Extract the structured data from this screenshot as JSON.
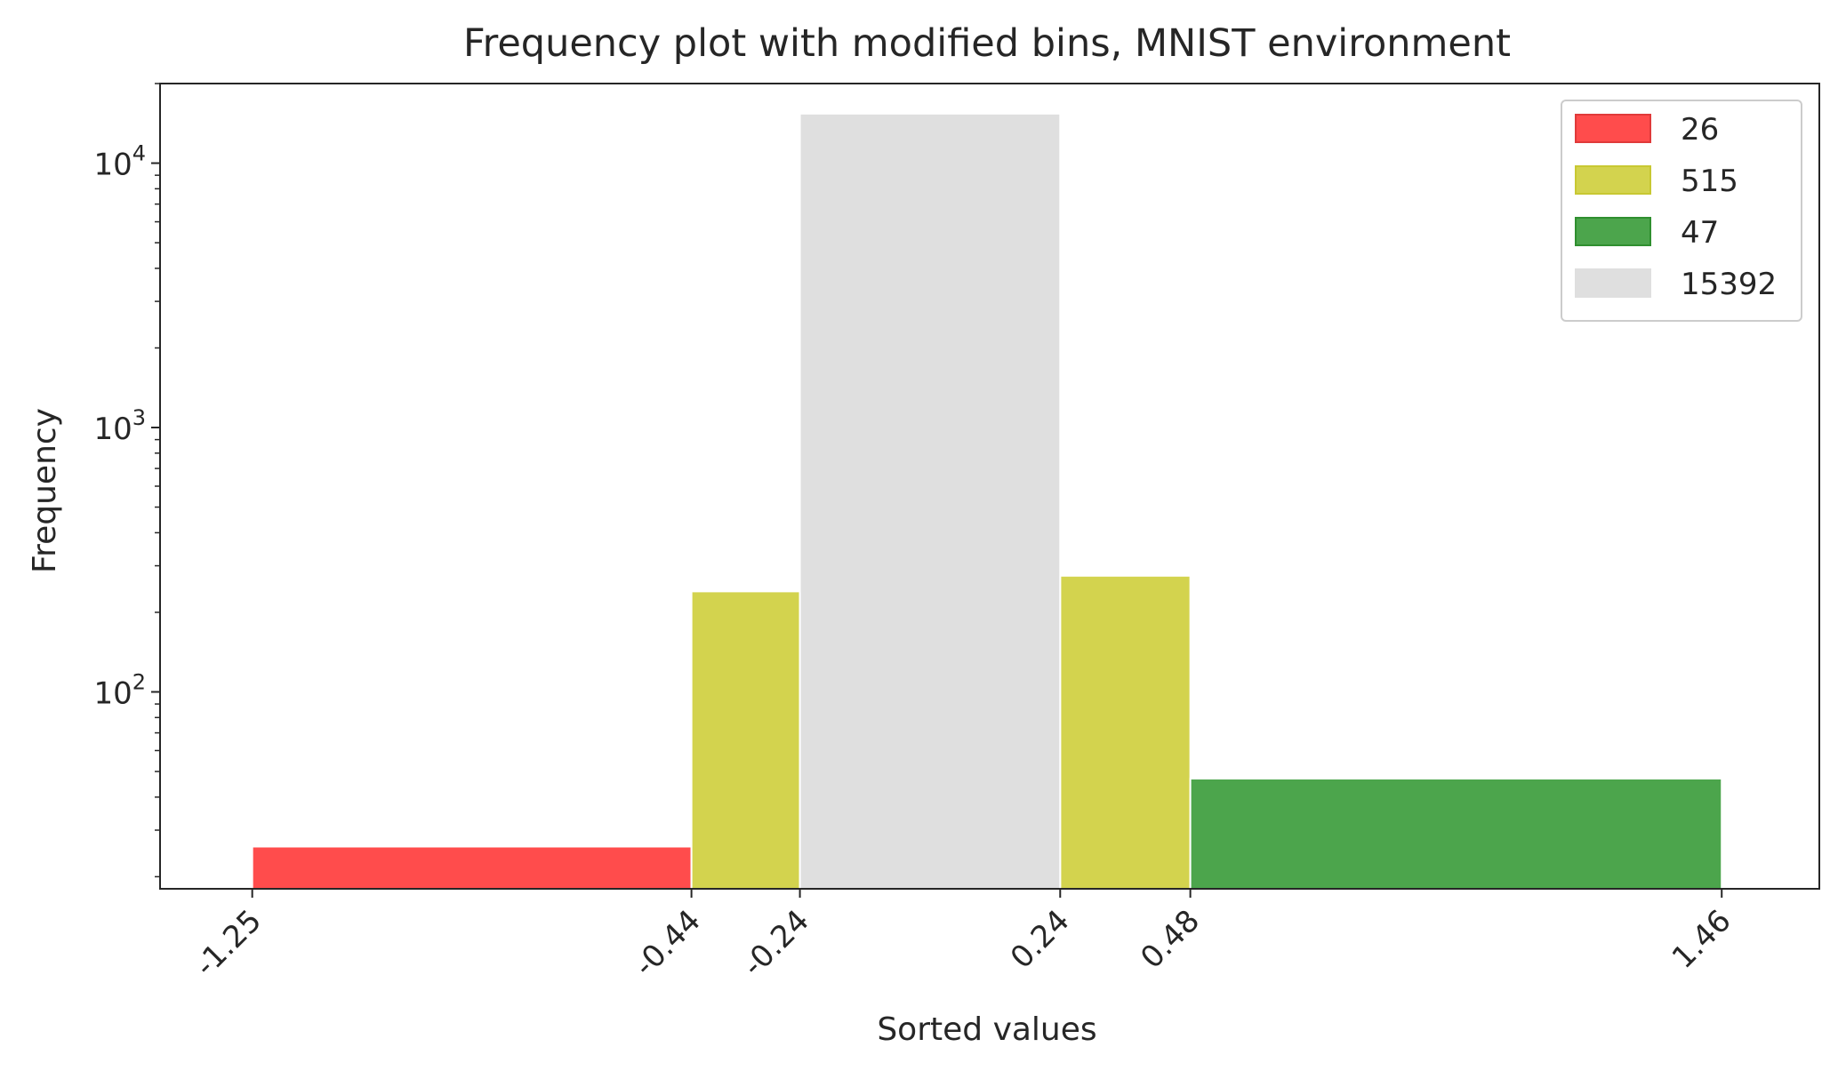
{
  "chart_data": {
    "type": "bar",
    "title": "Frequency plot with modified bins, MNIST environment",
    "xlabel": "Sorted values",
    "ylabel": "Frequency",
    "yscale": "log",
    "ylim": [
      18,
      20000
    ],
    "xlim": [
      -1.42,
      1.64
    ],
    "grid": false,
    "legend_position": "top-right",
    "x_ticks": [
      {
        "value": -1.25,
        "label": "-1.25"
      },
      {
        "value": -0.44,
        "label": "-0.44"
      },
      {
        "value": -0.24,
        "label": "-0.24"
      },
      {
        "value": 0.24,
        "label": "0.24"
      },
      {
        "value": 0.48,
        "label": "0.48"
      },
      {
        "value": 1.46,
        "label": "1.46"
      }
    ],
    "y_ticks": [
      {
        "value": 100,
        "base": "10",
        "exp": "2"
      },
      {
        "value": 1000,
        "base": "10",
        "exp": "3"
      },
      {
        "value": 10000,
        "base": "10",
        "exp": "4"
      }
    ],
    "series": [
      {
        "name": "26",
        "color": "#ff4c4c",
        "edge": "#e03a3a",
        "bins": [
          {
            "x0": -1.25,
            "x1": -0.44,
            "value": 26
          }
        ]
      },
      {
        "name": "515",
        "color": "#d3d34e",
        "edge": "#c8c832",
        "bins": [
          {
            "x0": -0.44,
            "x1": -0.24,
            "value": 240
          },
          {
            "x0": 0.24,
            "x1": 0.48,
            "value": 275
          }
        ]
      },
      {
        "name": "47",
        "color": "#4ca54c",
        "edge": "#2f8f2f",
        "bins": [
          {
            "x0": 0.48,
            "x1": 1.46,
            "value": 47
          }
        ]
      },
      {
        "name": "15392",
        "color": "#dfdfdf",
        "edge": "#dfdfdf",
        "bins": [
          {
            "x0": -0.24,
            "x1": 0.24,
            "value": 15392
          }
        ]
      }
    ]
  }
}
